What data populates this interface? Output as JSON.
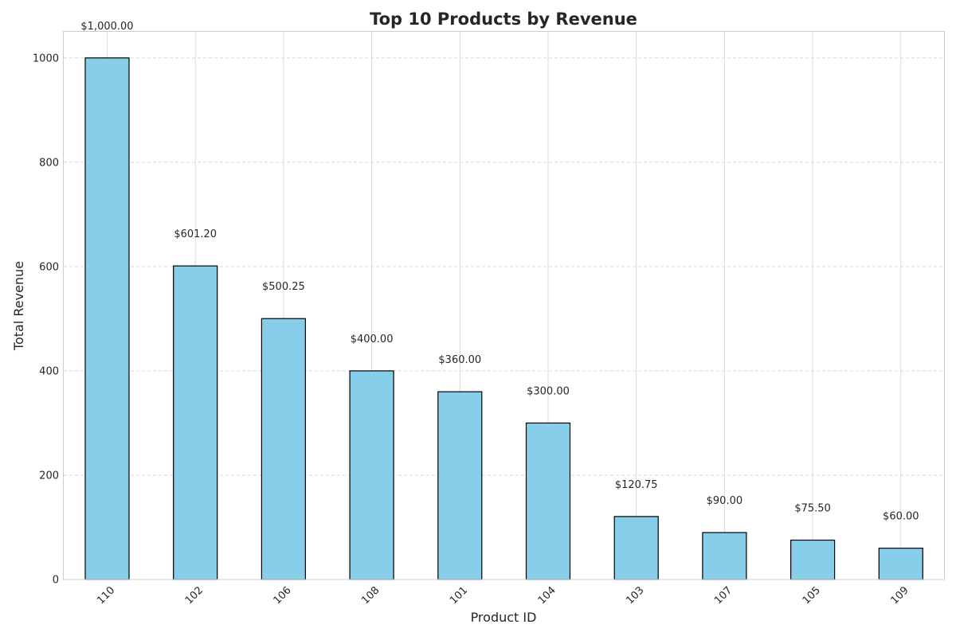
{
  "chart_data": {
    "type": "bar",
    "title": "Top 10 Products by Revenue",
    "xlabel": "Product ID",
    "ylabel": "Total Revenue",
    "categories": [
      "110",
      "102",
      "106",
      "108",
      "101",
      "104",
      "103",
      "107",
      "105",
      "109"
    ],
    "values": [
      1000.0,
      601.2,
      500.25,
      400.0,
      360.0,
      300.0,
      120.75,
      90.0,
      75.5,
      60.0
    ],
    "data_labels": [
      "$1,000.00",
      "$601.20",
      "$500.25",
      "$400.00",
      "$360.00",
      "$300.00",
      "$120.75",
      "$90.00",
      "$75.50",
      "$60.00"
    ],
    "ylim": [
      0,
      1050
    ],
    "yticks": [
      0,
      200,
      400,
      600,
      800,
      1000
    ],
    "ytick_labels": [
      "0",
      "200",
      "400",
      "600",
      "800",
      "1000"
    ],
    "grid": true,
    "legend": false,
    "colors": {
      "bar_fill": "#87ceeb",
      "bar_edge": "#000000",
      "grid": "#d9d9d9",
      "frame": "#cccccc"
    }
  }
}
